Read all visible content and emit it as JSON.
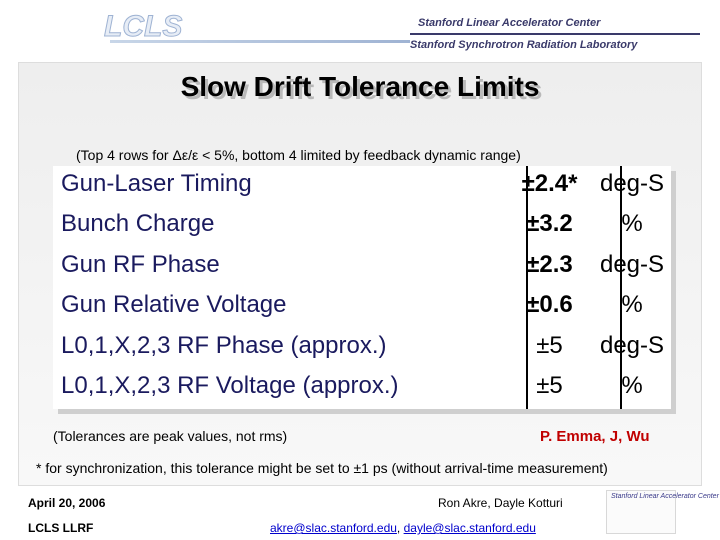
{
  "header": {
    "logo_text": "LCLS",
    "lab_line1": "Stanford Linear Accelerator Center",
    "lab_line2": "Stanford Synchrotron Radiation Laboratory"
  },
  "slide": {
    "title": "Slow Drift Tolerance Limits",
    "subtitle": "(Top 4 rows for Δε/ε < 5%, bottom 4 limited by feedback dynamic range)",
    "rows": [
      {
        "name": "Gun-Laser Timing",
        "tolerance": "±2.4*",
        "unit": "deg-S"
      },
      {
        "name": "Bunch Charge",
        "tolerance": "±3.2",
        "unit": "%"
      },
      {
        "name": "Gun RF Phase",
        "tolerance": "±2.3",
        "unit": "deg-S"
      },
      {
        "name": "Gun Relative Voltage",
        "tolerance": "±0.6",
        "unit": "%"
      },
      {
        "name": "L0,1,X,2,3 RF Phase (approx.)",
        "tolerance": "±5",
        "unit": "deg-S"
      },
      {
        "name": "L0,1,X,2,3 RF Voltage (approx.)",
        "tolerance": "±5",
        "unit": "%"
      }
    ],
    "note": "(Tolerances are peak values, not rms)",
    "author": "P. Emma, J, Wu",
    "footnote": "* for synchronization, this tolerance might be set to ±1 ps (without arrival-time measurement)"
  },
  "footer": {
    "date": "April 20, 2006",
    "org": "LCLS LLRF",
    "authors": "Ron Akre, Dayle Kotturi",
    "email1": "akre@slac.stanford.edu",
    "separator": ",",
    "email2": "dayle@slac.stanford.edu",
    "logo_text": "Stanford Linear Accelerator Center"
  },
  "colors": {
    "accent_red": "#c00000",
    "row_text": "#1a1a5e",
    "logo_blue": "#3a3a6a"
  }
}
